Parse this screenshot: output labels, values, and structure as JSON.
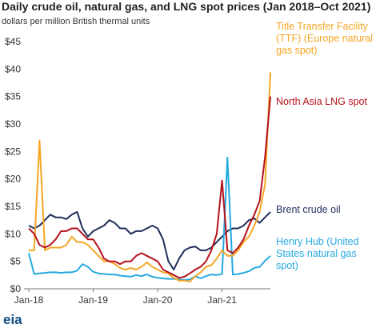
{
  "logo": "eia",
  "chart_data": {
    "type": "line",
    "title": "Daily crude oil, natural gas, and LNG spot prices (Jan 2018–Oct 2021)",
    "subtitle": "dollars per million British thermal units",
    "x": [
      "2018-01",
      "2018-02",
      "2018-03",
      "2018-04",
      "2018-05",
      "2018-06",
      "2018-07",
      "2018-08",
      "2018-09",
      "2018-10",
      "2018-11",
      "2018-12",
      "2019-01",
      "2019-02",
      "2019-03",
      "2019-04",
      "2019-05",
      "2019-06",
      "2019-07",
      "2019-08",
      "2019-09",
      "2019-10",
      "2019-11",
      "2019-12",
      "2020-01",
      "2020-02",
      "2020-03",
      "2020-04",
      "2020-05",
      "2020-06",
      "2020-07",
      "2020-08",
      "2020-09",
      "2020-10",
      "2020-11",
      "2020-12",
      "2021-01",
      "2021-02",
      "2021-03",
      "2021-04",
      "2021-05",
      "2021-06",
      "2021-07",
      "2021-08",
      "2021-09",
      "2021-10"
    ],
    "xlim": [
      "2018-01",
      "2021-10"
    ],
    "xticks": [
      {
        "value": "2018-01",
        "label": "Jan-18"
      },
      {
        "value": "2019-01",
        "label": "Jan-19"
      },
      {
        "value": "2020-01",
        "label": "Jan-20"
      },
      {
        "value": "2021-01",
        "label": "Jan-21"
      }
    ],
    "ylim": [
      0,
      45
    ],
    "yticks": [
      {
        "value": 0,
        "label": "$0"
      },
      {
        "value": 5,
        "label": "$5"
      },
      {
        "value": 10,
        "label": "$10"
      },
      {
        "value": 15,
        "label": "$15"
      },
      {
        "value": 20,
        "label": "$20"
      },
      {
        "value": 25,
        "label": "$25"
      },
      {
        "value": 30,
        "label": "$30"
      },
      {
        "value": 35,
        "label": "$35"
      },
      {
        "value": 40,
        "label": "$40"
      },
      {
        "value": 45,
        "label": "$45"
      }
    ],
    "series": [
      {
        "name": "Brent crude oil",
        "color": "#1f2d5a",
        "values": [
          11.5,
          11,
          11.5,
          12.5,
          13.5,
          13,
          13,
          12.7,
          13.5,
          14,
          11,
          9.5,
          10.5,
          11,
          11.5,
          12.5,
          12,
          11,
          11,
          10,
          10.5,
          10.5,
          11,
          11.5,
          11,
          9,
          5,
          3.5,
          5.5,
          7,
          7.5,
          7.7,
          7,
          7,
          7.5,
          8.5,
          9.5,
          10.5,
          11,
          11,
          11.5,
          12.5,
          12.8,
          12,
          13,
          14
        ]
      },
      {
        "name": "Henry Hub (United States natural gas spot)",
        "color": "#25a9e0",
        "values": [
          6.5,
          2.7,
          2.8,
          2.9,
          3,
          3,
          2.9,
          3,
          3,
          3.3,
          4.5,
          4,
          3.1,
          2.8,
          2.7,
          2.6,
          2.6,
          2.4,
          2.3,
          2.2,
          2.5,
          2.3,
          2.6,
          2.2,
          2,
          1.9,
          1.8,
          1.8,
          1.7,
          1.6,
          1.7,
          2.3,
          1.9,
          2.3,
          2.6,
          2.5,
          2.7,
          23.9,
          2.6,
          2.7,
          2.9,
          3.2,
          3.8,
          4,
          5.1,
          6
        ]
      },
      {
        "name": "Title Transfer Facility (TTF) (Europe natural gas spot)",
        "color": "#f5a623",
        "values": [
          7,
          7,
          27,
          7,
          7.5,
          7.5,
          7.5,
          8,
          9.5,
          8.5,
          8.5,
          8,
          7,
          6,
          5,
          5,
          4.5,
          3.8,
          3.5,
          3.8,
          3.5,
          4,
          4.8,
          4,
          3.5,
          3,
          2.8,
          2,
          1.5,
          1.5,
          1.3,
          2.3,
          3,
          4,
          4.3,
          5.5,
          7,
          6,
          6,
          7,
          8.5,
          9.5,
          11.5,
          14,
          19,
          39.4
        ]
      },
      {
        "name": "North Asia LNG spot",
        "color": "#b5121b",
        "values": [
          11,
          10,
          8,
          7.5,
          8,
          9,
          10.5,
          10.5,
          11,
          11,
          10,
          9,
          9,
          7.5,
          5.5,
          5,
          5,
          4.5,
          5,
          5,
          6,
          6.5,
          6,
          5.5,
          5,
          3.5,
          3,
          2.5,
          2,
          2.2,
          2.8,
          3.5,
          4,
          5,
          7,
          10,
          19.7,
          7,
          6.5,
          7.5,
          9,
          11.5,
          13.5,
          16,
          24,
          35
        ]
      }
    ]
  }
}
